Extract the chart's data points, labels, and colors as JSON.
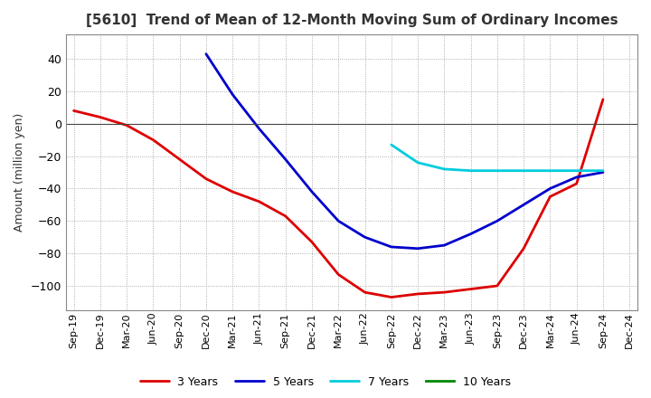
{
  "title": "[5610]  Trend of Mean of 12-Month Moving Sum of Ordinary Incomes",
  "ylabel": "Amount (million yen)",
  "ylim": [
    -115,
    55
  ],
  "yticks": [
    -100,
    -80,
    -60,
    -40,
    -20,
    0,
    20,
    40
  ],
  "background_color": "#ffffff",
  "grid_color": "#999999",
  "title_color": "#333333",
  "x_labels": [
    "Sep-19",
    "Dec-19",
    "Mar-20",
    "Jun-20",
    "Sep-20",
    "Dec-20",
    "Mar-21",
    "Jun-21",
    "Sep-21",
    "Dec-21",
    "Mar-22",
    "Jun-22",
    "Sep-22",
    "Dec-22",
    "Mar-23",
    "Jun-23",
    "Sep-23",
    "Dec-23",
    "Mar-24",
    "Jun-24",
    "Sep-24",
    "Dec-24"
  ],
  "series": {
    "3 Years": {
      "color": "#dd0000",
      "linewidth": 2.0,
      "points": [
        [
          0,
          8
        ],
        [
          1,
          4
        ],
        [
          2,
          -1
        ],
        [
          3,
          -10
        ],
        [
          4,
          -22
        ],
        [
          5,
          -34
        ],
        [
          6,
          -42
        ],
        [
          7,
          -48
        ],
        [
          8,
          -57
        ],
        [
          9,
          -73
        ],
        [
          10,
          -93
        ],
        [
          11,
          -104
        ],
        [
          12,
          -107
        ],
        [
          13,
          -105
        ],
        [
          14,
          -104
        ],
        [
          15,
          -102
        ],
        [
          16,
          -100
        ],
        [
          17,
          -77
        ],
        [
          18,
          -45
        ],
        [
          19,
          -37
        ],
        [
          20,
          15
        ]
      ]
    },
    "5 Years": {
      "color": "#0000cc",
      "linewidth": 2.0,
      "points": [
        [
          5,
          43
        ],
        [
          6,
          18
        ],
        [
          7,
          -3
        ],
        [
          8,
          -22
        ],
        [
          9,
          -42
        ],
        [
          10,
          -60
        ],
        [
          11,
          -70
        ],
        [
          12,
          -76
        ],
        [
          13,
          -77
        ],
        [
          14,
          -75
        ],
        [
          15,
          -68
        ],
        [
          16,
          -60
        ],
        [
          17,
          -50
        ],
        [
          18,
          -40
        ],
        [
          19,
          -33
        ],
        [
          20,
          -30
        ]
      ]
    },
    "7 Years": {
      "color": "#00ccdd",
      "linewidth": 2.0,
      "points": [
        [
          12,
          -13
        ],
        [
          13,
          -24
        ],
        [
          14,
          -28
        ],
        [
          15,
          -29
        ],
        [
          16,
          -29
        ],
        [
          17,
          -29
        ],
        [
          18,
          -29
        ],
        [
          19,
          -29
        ],
        [
          20,
          -29
        ]
      ]
    },
    "10 Years": {
      "color": "#008800",
      "linewidth": 2.0,
      "points": []
    }
  },
  "legend_order": [
    "3 Years",
    "5 Years",
    "7 Years",
    "10 Years"
  ]
}
